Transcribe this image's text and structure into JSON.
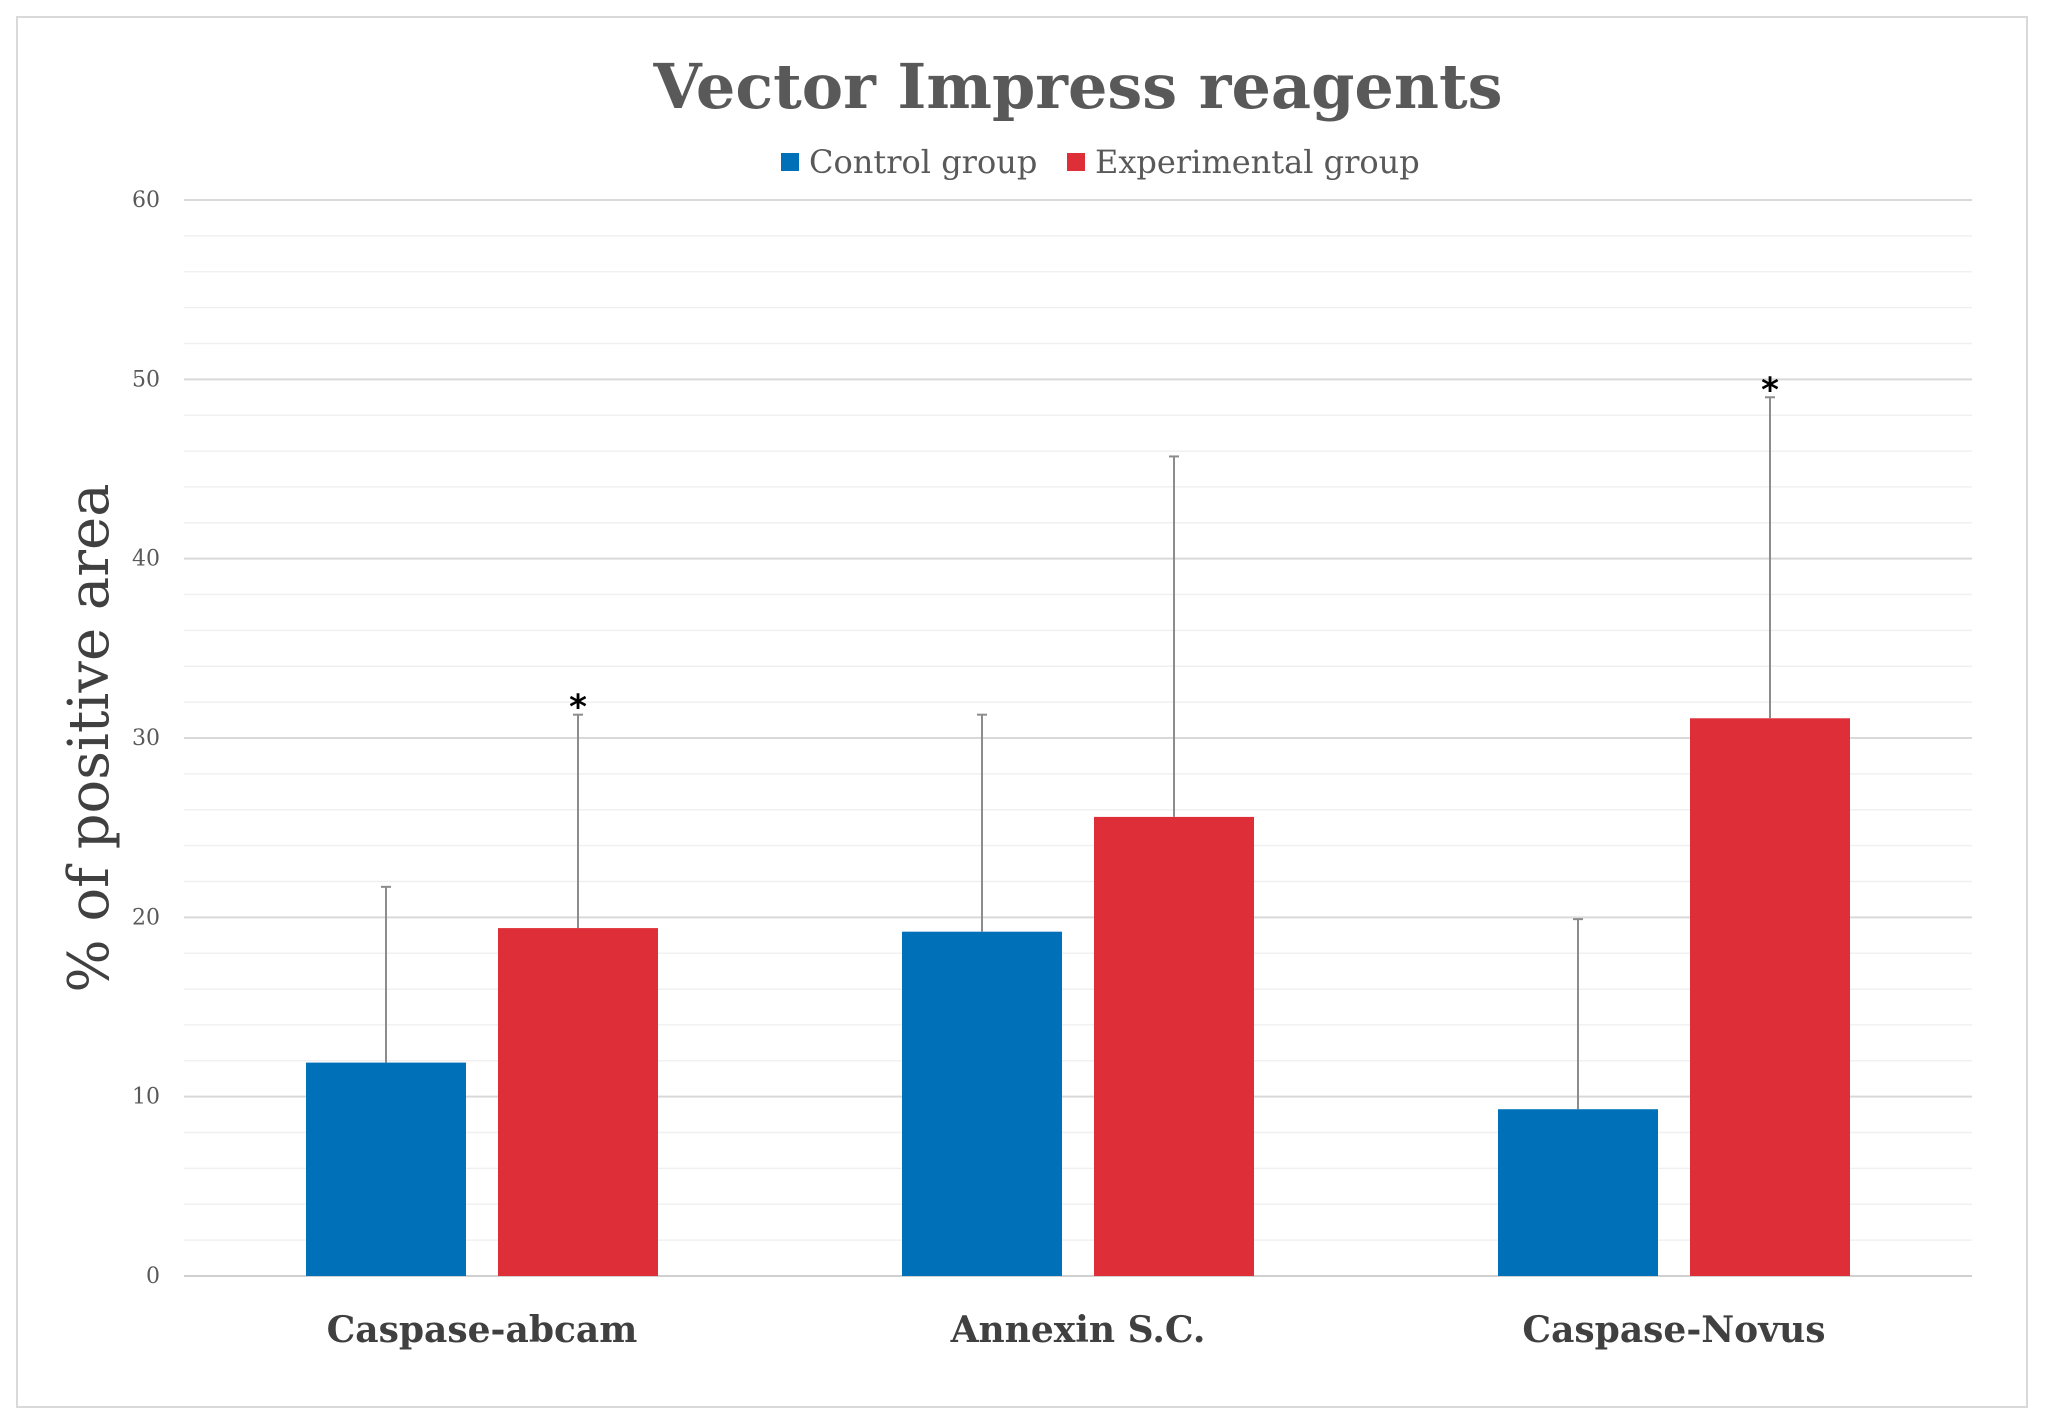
{
  "chart_data": {
    "type": "bar",
    "title": "Vector Impress reagents",
    "xlabel": "",
    "ylabel": "% of positive area",
    "ylim": [
      0,
      60
    ],
    "yticks": [
      0,
      10,
      20,
      30,
      40,
      50,
      60
    ],
    "minor_grid_step": 2,
    "grid": true,
    "legend_position": "top-center",
    "categories": [
      "Caspase-abcam",
      "Annexin S.C.",
      "Caspase-Novus"
    ],
    "series": [
      {
        "name": "Control group",
        "color": "#0070b8",
        "values": [
          11.9,
          19.2,
          9.3
        ],
        "error_upper": [
          21.7,
          31.3,
          19.9
        ],
        "significance": [
          "",
          "",
          ""
        ]
      },
      {
        "name": "Experimental group",
        "color": "#de2e37",
        "values": [
          19.4,
          25.6,
          31.1
        ],
        "error_upper": [
          31.3,
          45.7,
          49.0
        ],
        "significance": [
          "*",
          "",
          "*"
        ]
      }
    ]
  }
}
